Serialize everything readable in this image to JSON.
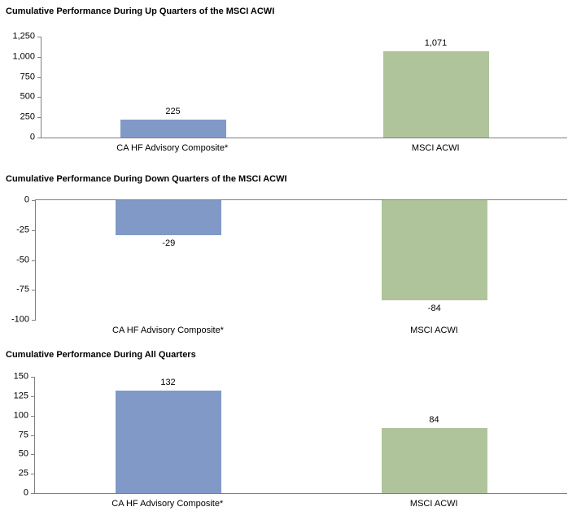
{
  "page": {
    "background": "#FFFFFF",
    "axis_color": "#808080",
    "text_color": "#000000"
  },
  "colors": {
    "composite_bar": "#8099C7",
    "msci_bar": "#AFC49B"
  },
  "chart_data": [
    {
      "type": "bar",
      "title": "Cumulative Performance During Up Quarters of the MSCI ACWI",
      "categories": [
        "CA HF Advisory Composite*",
        "MSCI ACWI"
      ],
      "values": [
        225,
        1071
      ],
      "value_labels": [
        "225",
        "1,071"
      ],
      "bar_colors": [
        "#8099C7",
        "#AFC49B"
      ],
      "xlabel": "",
      "ylabel": "",
      "ylim": [
        0,
        1250
      ],
      "yticks": [
        1250,
        1000,
        750,
        500,
        250,
        0
      ],
      "ytick_labels": [
        "1,250",
        "1,000",
        "750",
        "500",
        "250",
        "0"
      ],
      "grid": false,
      "legend": "none"
    },
    {
      "type": "bar",
      "title": "Cumulative Performance During Down Quarters of the MSCI ACWI",
      "categories": [
        "CA HF Advisory Composite*",
        "MSCI ACWI"
      ],
      "values": [
        -29,
        -84
      ],
      "value_labels": [
        "-29",
        "-84"
      ],
      "bar_colors": [
        "#8099C7",
        "#AFC49B"
      ],
      "xlabel": "",
      "ylabel": "",
      "ylim": [
        -100,
        0
      ],
      "yticks": [
        0,
        -25,
        -50,
        -75,
        -100
      ],
      "ytick_labels": [
        "0",
        "-25",
        "-50",
        "-75",
        "-100"
      ],
      "grid": false,
      "legend": "none"
    },
    {
      "type": "bar",
      "title": "Cumulative Performance During All Quarters",
      "categories": [
        "CA HF Advisory Composite*",
        "MSCI ACWI"
      ],
      "values": [
        132,
        84
      ],
      "value_labels": [
        "132",
        "84"
      ],
      "bar_colors": [
        "#8099C7",
        "#AFC49B"
      ],
      "xlabel": "",
      "ylabel": "",
      "ylim": [
        0,
        150
      ],
      "yticks": [
        150,
        125,
        100,
        75,
        50,
        25,
        0
      ],
      "ytick_labels": [
        "150",
        "125",
        "100",
        "75",
        "50",
        "25",
        "0"
      ],
      "grid": false,
      "legend": "none"
    }
  ]
}
